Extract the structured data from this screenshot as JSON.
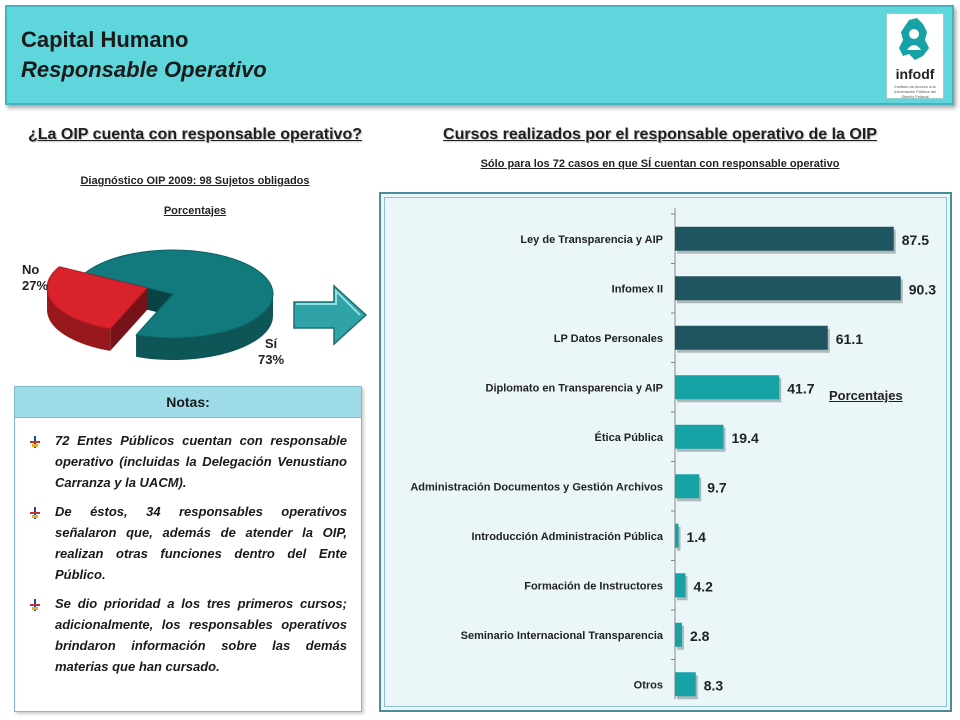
{
  "header": {
    "title": "Capital Humano",
    "subtitle": "Responsable Operativo",
    "logo_text": "infodf",
    "logo_tagline": "Instituto de Acceso a la Información Pública del Distrito Federal"
  },
  "pie_section": {
    "title": "¿La OIP cuenta con responsable operativo?",
    "subtitle": "Diagnóstico OIP 2009: 98 Sujetos obligados",
    "units": "Porcentajes",
    "no_label": "No",
    "no_value": "27%",
    "si_label": "Sí",
    "si_value": "73%"
  },
  "notes": {
    "header": "Notas:",
    "items": [
      "72 Entes Públicos cuentan con responsable operativo (incluidas la Delegación Venustiano Carranza y la UACM).",
      "De éstos, 34 responsables operativos señalaron que, además de atender la OIP, realizan otras funciones dentro del Ente Público.",
      "Se dio prioridad a los tres primeros cursos; adicionalmente, los responsables operativos brindaron información sobre las demás materias que han cursado."
    ]
  },
  "bar_section": {
    "title": "Cursos realizados por el responsable operativo de la OIP",
    "subtitle": "Sólo para los 72 casos en que SÍ cuentan con responsable operativo"
  },
  "colors": {
    "dark_teal": "#1f5560",
    "light_teal": "#17a2a5",
    "pie_teal": "#127a7c",
    "pie_red": "#d9222b",
    "header_bg": "#5fd6dc"
  },
  "chart_data": [
    {
      "type": "pie",
      "title": "¿La OIP cuenta con responsable operativo?",
      "categories": [
        "Sí",
        "No"
      ],
      "values": [
        73,
        27
      ],
      "colors": [
        "#127a7c",
        "#d9222b"
      ],
      "style": "3d-exploded"
    },
    {
      "type": "bar",
      "orientation": "horizontal",
      "title": "Cursos realizados por el responsable operativo de la OIP",
      "xlabel": "Porcentajes",
      "categories": [
        "Ley de Transparencia y AIP",
        "Infomex II",
        "LP Datos Personales",
        "Diplomato en Transparencia y AIP",
        "Ética Pública",
        "Administración Documentos y Gestión Archivos",
        "Introducción Administración Pública",
        "Formación de Instructores",
        "Seminario Internacional Transparencia",
        "Otros"
      ],
      "values": [
        87.5,
        90.3,
        61.1,
        41.7,
        19.4,
        9.7,
        1.4,
        4.2,
        2.8,
        8.3
      ],
      "value_labels": [
        "87.5",
        "90.3",
        "61.1",
        "41.7",
        "19.4",
        "9.7",
        "1.4",
        "4.2",
        "2.8",
        "8.3"
      ],
      "bar_colors": [
        "#1f5560",
        "#1f5560",
        "#1f5560",
        "#17a2a5",
        "#17a2a5",
        "#17a2a5",
        "#17a2a5",
        "#17a2a5",
        "#17a2a5",
        "#17a2a5"
      ],
      "xlim": [
        0,
        100
      ],
      "grid": false,
      "legend": "none"
    }
  ]
}
